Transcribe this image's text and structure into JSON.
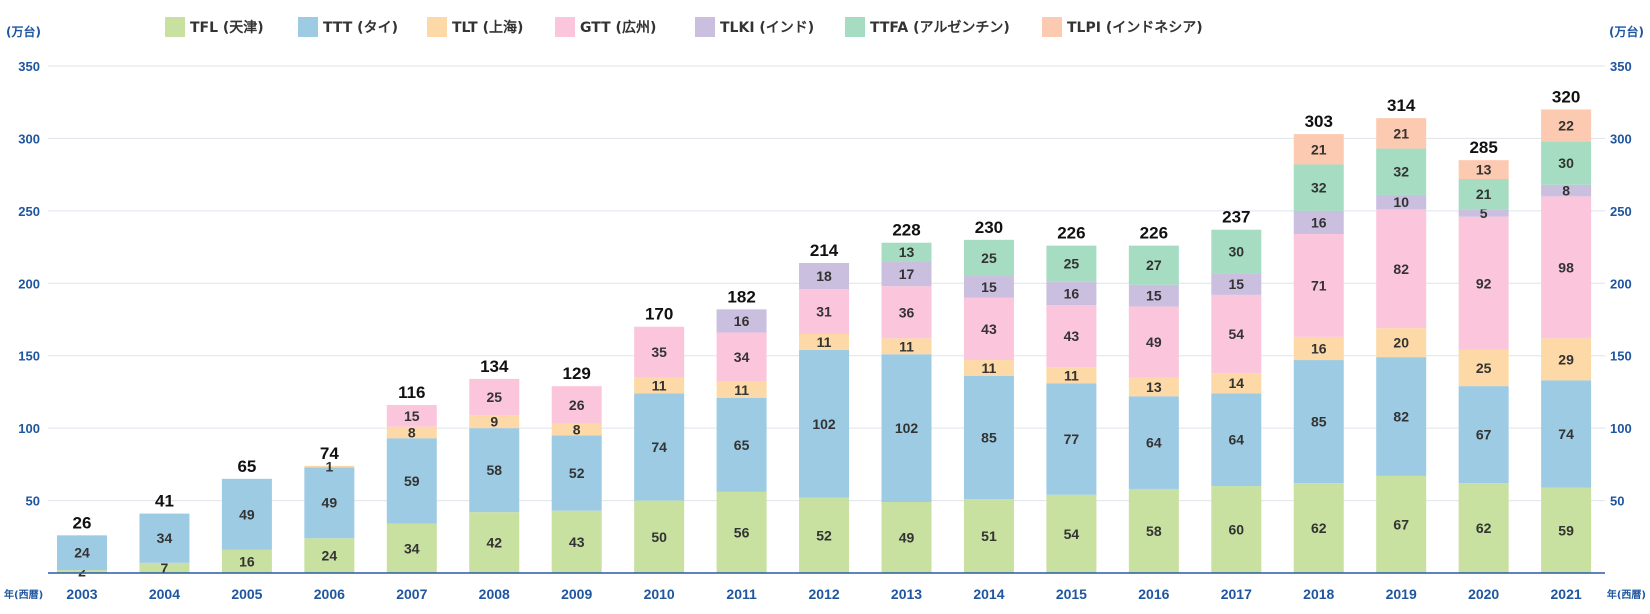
{
  "chart_data": {
    "type": "bar",
    "stacked": true,
    "y_unit_left": "(万台)",
    "y_unit_right": "(万台)",
    "x_unit_left": "年(西暦)",
    "x_unit_right": "年(西暦)",
    "ylim": [
      0,
      350
    ],
    "yticks": [
      50,
      100,
      150,
      200,
      250,
      300,
      350
    ],
    "grid": true,
    "legend_position": "top",
    "categories": [
      "2003",
      "2004",
      "2005",
      "2006",
      "2007",
      "2008",
      "2009",
      "2010",
      "2011",
      "2012",
      "2013",
      "2014",
      "2015",
      "2016",
      "2017",
      "2018",
      "2019",
      "2020",
      "2021"
    ],
    "totals": [
      26,
      41,
      65,
      74,
      116,
      134,
      129,
      170,
      182,
      214,
      228,
      230,
      226,
      226,
      237,
      303,
      314,
      285,
      320
    ],
    "series": [
      {
        "name": "TFL (天津)",
        "color": "#c8e0a0",
        "values": [
          2,
          7,
          16,
          24,
          34,
          42,
          43,
          50,
          56,
          52,
          49,
          51,
          54,
          58,
          60,
          62,
          67,
          62,
          59
        ]
      },
      {
        "name": "TTT (タイ)",
        "color": "#9ecbe4",
        "values": [
          24,
          34,
          49,
          49,
          59,
          58,
          52,
          74,
          65,
          102,
          102,
          85,
          77,
          64,
          64,
          85,
          82,
          67,
          74
        ]
      },
      {
        "name": "TLT (上海)",
        "color": "#fcd9a6",
        "values": [
          0,
          0,
          0,
          1,
          8,
          9,
          8,
          11,
          11,
          11,
          11,
          11,
          11,
          13,
          14,
          16,
          20,
          25,
          29
        ]
      },
      {
        "name": "GTT (広州)",
        "color": "#fbc6dc",
        "values": [
          0,
          0,
          0,
          0,
          15,
          25,
          26,
          35,
          34,
          31,
          36,
          43,
          43,
          49,
          54,
          71,
          82,
          92,
          98
        ]
      },
      {
        "name": "TLKI (インド)",
        "color": "#cbbfe0",
        "values": [
          0,
          0,
          0,
          0,
          0,
          0,
          0,
          0,
          16,
          18,
          17,
          15,
          16,
          15,
          15,
          16,
          10,
          5,
          8
        ]
      },
      {
        "name": "TTFA (アルゼンチン)",
        "color": "#a5dcc2",
        "values": [
          0,
          0,
          0,
          0,
          0,
          0,
          0,
          0,
          0,
          0,
          13,
          25,
          25,
          27,
          30,
          32,
          32,
          21,
          30
        ]
      },
      {
        "name": "TLPI (インドネシア)",
        "color": "#fcc9b1",
        "values": [
          0,
          0,
          0,
          0,
          0,
          0,
          0,
          0,
          0,
          0,
          0,
          0,
          0,
          0,
          0,
          21,
          21,
          13,
          22
        ]
      }
    ]
  }
}
